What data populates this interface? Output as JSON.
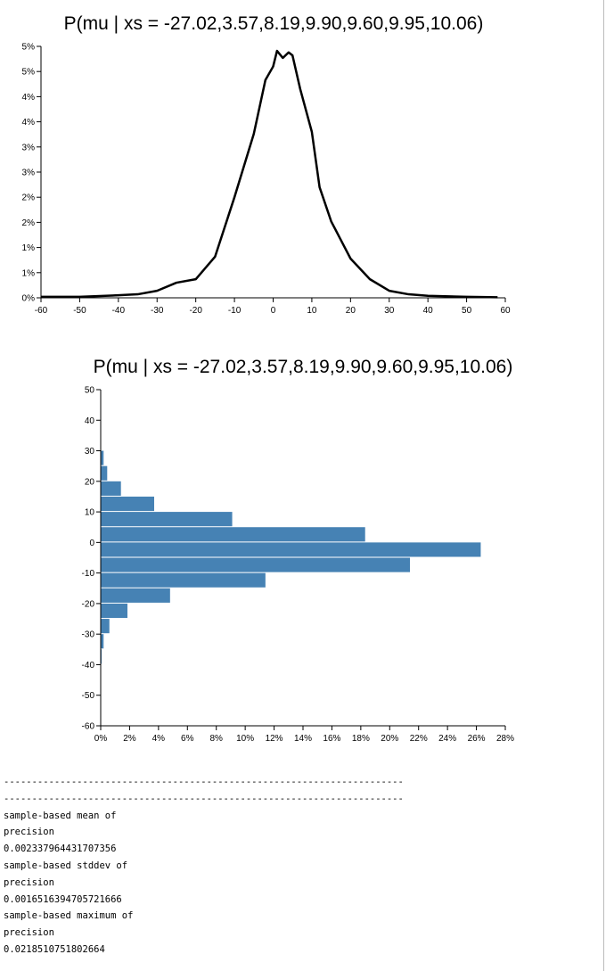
{
  "chart_data": [
    {
      "type": "line",
      "title": "P(mu | xs = -27.02,3.57,8.19,9.90,9.60,9.95,10.06)",
      "x": [
        -60,
        -50,
        -40,
        -35,
        -30,
        -25,
        -20,
        -15,
        -10,
        -5,
        -2,
        0,
        1,
        2.5,
        4,
        5,
        7,
        10,
        12,
        15,
        20,
        25,
        30,
        35,
        40,
        50,
        58
      ],
      "series": [
        {
          "color": "#000000",
          "values": [
            0.02,
            0.02,
            0.05,
            0.07,
            0.14,
            0.3,
            0.37,
            0.82,
            2.0,
            3.26,
            4.33,
            4.6,
            4.91,
            4.77,
            4.88,
            4.82,
            4.15,
            3.3,
            2.2,
            1.52,
            0.78,
            0.37,
            0.14,
            0.07,
            0.04,
            0.02,
            0.01
          ]
        }
      ],
      "xlim": [
        -60,
        60
      ],
      "xticks": [
        -60,
        -50,
        -40,
        -30,
        -20,
        -10,
        0,
        10,
        20,
        30,
        40,
        50,
        60
      ],
      "ylim": [
        0,
        5
      ],
      "yticks": [
        {
          "value": 0,
          "label": "0%"
        },
        {
          "value": 0.5,
          "label": "1%"
        },
        {
          "value": 1,
          "label": "1%"
        },
        {
          "value": 1.5,
          "label": "2%"
        },
        {
          "value": 2,
          "label": "2%"
        },
        {
          "value": 2.5,
          "label": "3%"
        },
        {
          "value": 3,
          "label": "3%"
        },
        {
          "value": 3.5,
          "label": "4%"
        },
        {
          "value": 4,
          "label": "4%"
        },
        {
          "value": 4.5,
          "label": "5%"
        },
        {
          "value": 5,
          "label": "5%"
        }
      ]
    },
    {
      "type": "histogram",
      "title": "P(mu | xs = -27.02,3.57,8.19,9.90,9.60,9.95,10.06)",
      "bins": [
        -40,
        -35,
        -30,
        -25,
        -20,
        -15,
        -10,
        -5,
        0,
        5,
        10,
        15,
        20,
        25,
        30
      ],
      "values": [
        0.06,
        0.2,
        0.6,
        1.85,
        4.8,
        11.4,
        21.4,
        26.3,
        18.3,
        9.1,
        3.7,
        1.4,
        0.45,
        0.2
      ],
      "color": "#4682b4",
      "ylim": [
        -60,
        50
      ],
      "yticks": [
        -60,
        -50,
        -40,
        -30,
        -20,
        -10,
        0,
        10,
        20,
        30,
        40,
        50
      ],
      "xlim": [
        0,
        28
      ],
      "xticks": [
        {
          "value": 0,
          "label": "0%"
        },
        {
          "value": 2,
          "label": "2%"
        },
        {
          "value": 4,
          "label": "4%"
        },
        {
          "value": 6,
          "label": "6%"
        },
        {
          "value": 8,
          "label": "8%"
        },
        {
          "value": 10,
          "label": "10%"
        },
        {
          "value": 12,
          "label": "12%"
        },
        {
          "value": 14,
          "label": "14%"
        },
        {
          "value": 16,
          "label": "16%"
        },
        {
          "value": 18,
          "label": "18%"
        },
        {
          "value": 20,
          "label": "20%"
        },
        {
          "value": 22,
          "label": "22%"
        },
        {
          "value": 24,
          "label": "24%"
        },
        {
          "value": 26,
          "label": "26%"
        },
        {
          "value": 28,
          "label": "28%"
        }
      ]
    }
  ],
  "output": {
    "lines": [
      "-----------------------------------------------------------------------",
      "-----------------------------------------------------------------------",
      "sample-based mean of",
      "precision",
      "0.002337964431707356",
      "sample-based stddev of",
      "precision",
      "0.0016516394705721666",
      "sample-based maximum of",
      "precision",
      "0.0218510751802664"
    ]
  }
}
